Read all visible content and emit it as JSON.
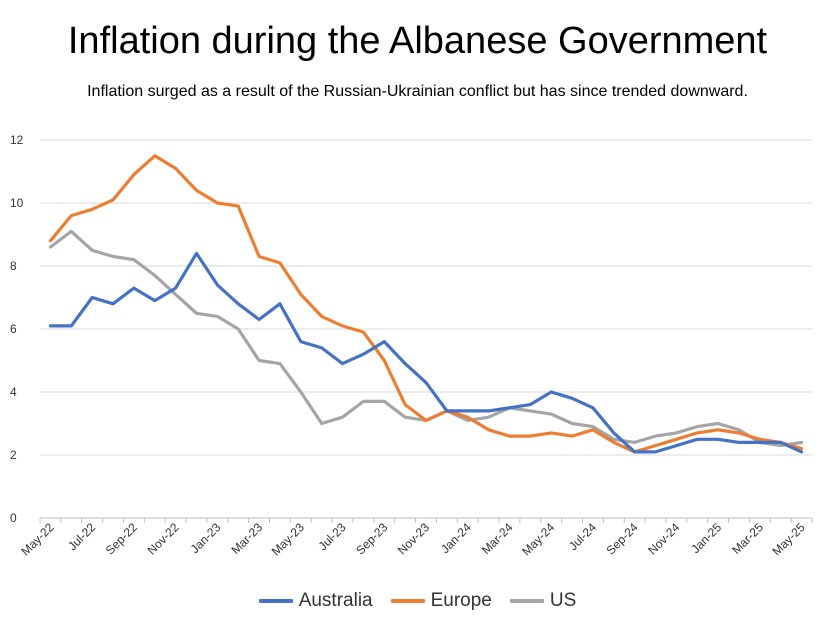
{
  "chart_data": {
    "type": "line",
    "title": "Inflation during the Albanese Government",
    "subtitle": "Inflation surged as a result of the Russian-Ukrainian conflict but has since trended downward.",
    "xlabel": "",
    "ylabel": "",
    "ylim": [
      0,
      12
    ],
    "yticks": [
      0,
      2,
      4,
      6,
      8,
      10,
      12
    ],
    "grid": true,
    "legend_position": "bottom",
    "x": [
      "May-22",
      "Jun-22",
      "Jul-22",
      "Aug-22",
      "Sep-22",
      "Oct-22",
      "Nov-22",
      "Dec-22",
      "Jan-23",
      "Feb-23",
      "Mar-23",
      "Apr-23",
      "May-23",
      "Jun-23",
      "Jul-23",
      "Aug-23",
      "Sep-23",
      "Oct-23",
      "Nov-23",
      "Dec-23",
      "Jan-24",
      "Feb-24",
      "Mar-24",
      "Apr-24",
      "May-24",
      "Jun-24",
      "Jul-24",
      "Aug-24",
      "Sep-24",
      "Oct-24",
      "Nov-24",
      "Dec-24",
      "Jan-25",
      "Feb-25",
      "Mar-25",
      "Apr-25",
      "May-25"
    ],
    "xtick_labels": [
      "May-22",
      "Jul-22",
      "Sep-22",
      "Nov-22",
      "Jan-23",
      "Mar-23",
      "May-23",
      "Jul-23",
      "Sep-23",
      "Nov-23",
      "Jan-24",
      "Mar-24",
      "May-24",
      "Jul-24",
      "Sep-24",
      "Nov-24",
      "Jan-25",
      "Mar-25",
      "May-25"
    ],
    "series": [
      {
        "name": "Australia",
        "color": "#4472C4",
        "values": [
          6.1,
          6.1,
          7.0,
          6.8,
          7.3,
          6.9,
          7.3,
          8.4,
          7.4,
          6.8,
          6.3,
          6.8,
          5.6,
          5.4,
          4.9,
          5.2,
          5.6,
          4.9,
          4.3,
          3.4,
          3.4,
          3.4,
          3.5,
          3.6,
          4.0,
          3.8,
          3.5,
          2.7,
          2.1,
          2.1,
          2.3,
          2.5,
          2.5,
          2.4,
          2.4,
          2.4,
          2.1
        ]
      },
      {
        "name": "Europe",
        "color": "#ED7D31",
        "values": [
          8.8,
          9.6,
          9.8,
          10.1,
          10.9,
          11.5,
          11.1,
          10.4,
          10.0,
          9.9,
          8.3,
          8.1,
          7.1,
          6.4,
          6.1,
          5.9,
          5.0,
          3.6,
          3.1,
          3.4,
          3.2,
          2.8,
          2.6,
          2.6,
          2.7,
          2.6,
          2.8,
          2.4,
          2.1,
          2.3,
          2.5,
          2.7,
          2.8,
          2.7,
          2.5,
          2.4,
          2.2
        ]
      },
      {
        "name": "US",
        "color": "#A5A5A5",
        "values": [
          8.6,
          9.1,
          8.5,
          8.3,
          8.2,
          7.7,
          7.1,
          6.5,
          6.4,
          6.0,
          5.0,
          4.9,
          4.0,
          3.0,
          3.2,
          3.7,
          3.7,
          3.2,
          3.1,
          3.4,
          3.1,
          3.2,
          3.5,
          3.4,
          3.3,
          3.0,
          2.9,
          2.5,
          2.4,
          2.6,
          2.7,
          2.9,
          3.0,
          2.8,
          2.4,
          2.3,
          2.4
        ]
      }
    ]
  }
}
